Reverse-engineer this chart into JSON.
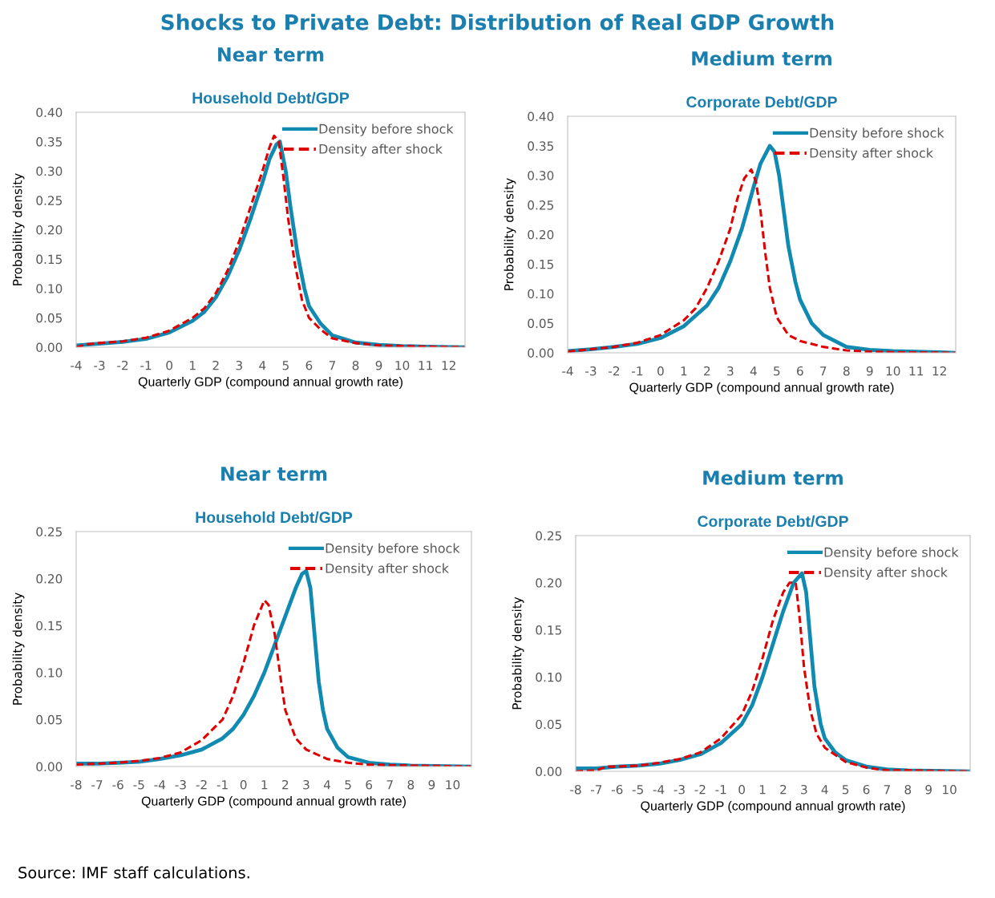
{
  "chart_data": [
    {
      "type": "other",
      "title": "Shocks to Private Debt: Distribution of Real GDP Growth",
      "annotations": [
        "Source: IMF staff calculations."
      ]
    },
    {
      "type": "line",
      "title": "Near term",
      "subtitle": "Household Debt/GDP",
      "xlabel": "Quarterly GDP (compound annual growth rate)",
      "ylabel": "Probability density",
      "xlim": [
        -4,
        12.7
      ],
      "xticks": [
        -4,
        -3,
        -2,
        -1,
        0,
        1,
        2,
        3,
        4,
        5,
        6,
        7,
        8,
        9,
        10,
        11,
        12
      ],
      "ylim": [
        0,
        0.4
      ],
      "yticks": [
        {
          "value": 0,
          "label": "0.00"
        },
        {
          "value": 0.05,
          "label": "0.05"
        },
        {
          "value": 0.1,
          "label": "0.10"
        },
        {
          "value": 0.15,
          "label": "0.15"
        },
        {
          "value": 0.2,
          "label": "0.20"
        },
        {
          "value": 0.25,
          "label": "0.25"
        },
        {
          "value": 0.3,
          "label": "0.30"
        },
        {
          "value": 0.35,
          "label": "0.35"
        },
        {
          "value": 0.4,
          "label": "0.40"
        }
      ],
      "legend": "top right",
      "grid": false,
      "series": [
        {
          "name": "Density before shock",
          "color": "#118ab2",
          "line_style": "solid",
          "x": [
            -4,
            -3,
            -2,
            -1,
            0,
            1,
            1.5,
            2,
            2.5,
            3,
            3.5,
            4,
            4.3,
            4.6,
            4.75,
            5,
            5.2,
            5.5,
            5.8,
            6,
            6.5,
            7,
            8,
            9,
            10,
            11,
            12.7
          ],
          "values": [
            0.003,
            0.006,
            0.009,
            0.014,
            0.025,
            0.045,
            0.06,
            0.085,
            0.12,
            0.165,
            0.22,
            0.28,
            0.32,
            0.345,
            0.35,
            0.3,
            0.24,
            0.16,
            0.1,
            0.07,
            0.04,
            0.02,
            0.008,
            0.004,
            0.002,
            0.001,
            0
          ]
        },
        {
          "name": "Density after shock",
          "color": "#e00000",
          "line_style": "dashed",
          "x": [
            -4,
            -3.5,
            -3,
            -2,
            -1,
            0,
            1,
            1.5,
            2,
            2.5,
            3,
            3.5,
            4,
            4.3,
            4.5,
            4.7,
            4.9,
            5.1,
            5.4,
            5.7,
            6,
            6.5,
            7,
            8,
            9,
            10,
            11,
            12.7
          ],
          "values": [
            0,
            0.005,
            0.007,
            0.01,
            0.016,
            0.028,
            0.05,
            0.066,
            0.092,
            0.13,
            0.18,
            0.24,
            0.3,
            0.34,
            0.36,
            0.35,
            0.29,
            0.22,
            0.14,
            0.08,
            0.05,
            0.03,
            0.015,
            0.007,
            0.003,
            0.002,
            0.001,
            0
          ]
        }
      ]
    },
    {
      "type": "line",
      "title": "Medium term",
      "subtitle": "Corporate Debt/GDP",
      "xlabel": "Quarterly GDP (compound annual growth rate)",
      "ylabel": "Probability density",
      "xlim": [
        -4,
        12.7
      ],
      "xticks": [
        -4,
        -3,
        -2,
        -1,
        0,
        1,
        2,
        3,
        4,
        5,
        6,
        7,
        8,
        9,
        10,
        11,
        12
      ],
      "ylim": [
        0,
        0.4
      ],
      "yticks": [
        {
          "value": 0,
          "label": "0.00"
        },
        {
          "value": 0.05,
          "label": "0.05"
        },
        {
          "value": 0.1,
          "label": "0.10"
        },
        {
          "value": 0.15,
          "label": "0.15"
        },
        {
          "value": 0.2,
          "label": "0.20"
        },
        {
          "value": 0.25,
          "label": "0.25"
        },
        {
          "value": 0.3,
          "label": "0.30"
        },
        {
          "value": 0.35,
          "label": "0.35"
        },
        {
          "value": 0.4,
          "label": "0.40"
        }
      ],
      "legend": "top right",
      "grid": false,
      "series": [
        {
          "name": "Density before shock",
          "color": "#118ab2",
          "line_style": "solid",
          "x": [
            -4,
            -3,
            -2,
            -1,
            0,
            1,
            2,
            2.5,
            3,
            3.5,
            4,
            4.3,
            4.7,
            4.9,
            5.1,
            5.3,
            5.5,
            5.8,
            6,
            6.5,
            7,
            8,
            9,
            10,
            11,
            12,
            12.7
          ],
          "values": [
            0.003,
            0.006,
            0.01,
            0.015,
            0.025,
            0.045,
            0.08,
            0.11,
            0.155,
            0.21,
            0.28,
            0.32,
            0.35,
            0.34,
            0.3,
            0.24,
            0.18,
            0.12,
            0.09,
            0.05,
            0.03,
            0.01,
            0.005,
            0.003,
            0.002,
            0.001,
            0
          ]
        },
        {
          "name": "Density after shock",
          "color": "#e00000",
          "line_style": "dashed",
          "x": [
            -4,
            -3,
            -2,
            -1,
            0,
            1,
            1.5,
            2,
            2.5,
            3,
            3.3,
            3.6,
            3.9,
            4.1,
            4.3,
            4.5,
            4.7,
            5,
            5.5,
            6,
            7,
            8,
            9,
            10,
            12.7
          ],
          "values": [
            0.002,
            0.006,
            0.01,
            0.017,
            0.03,
            0.055,
            0.075,
            0.11,
            0.155,
            0.21,
            0.26,
            0.295,
            0.31,
            0.29,
            0.24,
            0.17,
            0.11,
            0.06,
            0.03,
            0.02,
            0.01,
            0.004,
            0.002,
            0.001,
            0
          ]
        }
      ]
    },
    {
      "type": "line",
      "title": "Near term",
      "subtitle": "Household Debt/GDP",
      "xlabel": "Quarterly GDP (compound annual growth rate)",
      "ylabel": "Probability density",
      "xlim": [
        -8,
        10.9
      ],
      "xticks": [
        -8,
        -7,
        -6,
        -5,
        -4,
        -3,
        -2,
        -1,
        0,
        1,
        2,
        3,
        4,
        5,
        6,
        7,
        8,
        9,
        10
      ],
      "ylim": [
        0,
        0.25
      ],
      "yticks": [
        {
          "value": 0,
          "label": "0.00"
        },
        {
          "value": 0.05,
          "label": "0.05"
        },
        {
          "value": 0.1,
          "label": "0.10"
        },
        {
          "value": 0.15,
          "label": "0.15"
        },
        {
          "value": 0.2,
          "label": "0.20"
        },
        {
          "value": 0.25,
          "label": "0.25"
        }
      ],
      "legend": "top right",
      "grid": false,
      "series": [
        {
          "name": "Density before shock",
          "color": "#118ab2",
          "line_style": "solid",
          "x": [
            -8,
            -7,
            -6,
            -5,
            -4,
            -3,
            -2,
            -1,
            -0.5,
            0,
            0.5,
            1,
            1.5,
            2,
            2.5,
            2.8,
            3,
            3.2,
            3.4,
            3.6,
            3.8,
            4,
            4.5,
            5,
            6,
            7,
            8,
            10.9
          ],
          "values": [
            0.003,
            0.003,
            0.004,
            0.005,
            0.008,
            0.012,
            0.018,
            0.03,
            0.04,
            0.055,
            0.075,
            0.1,
            0.13,
            0.16,
            0.19,
            0.205,
            0.208,
            0.19,
            0.14,
            0.09,
            0.06,
            0.04,
            0.02,
            0.01,
            0.004,
            0.002,
            0.001,
            0
          ]
        },
        {
          "name": "Density after shock",
          "color": "#e00000",
          "line_style": "dashed",
          "x": [
            -8,
            -7,
            -6,
            -5,
            -4,
            -3,
            -2,
            -1,
            -0.5,
            0,
            0.5,
            1,
            1.2,
            1.5,
            1.8,
            2,
            2.5,
            3,
            4,
            5,
            6,
            8,
            10.9
          ],
          "values": [
            0.002,
            0.003,
            0.004,
            0.006,
            0.009,
            0.015,
            0.028,
            0.05,
            0.075,
            0.11,
            0.15,
            0.177,
            0.172,
            0.14,
            0.09,
            0.06,
            0.03,
            0.018,
            0.008,
            0.004,
            0.002,
            0.001,
            0
          ]
        }
      ]
    },
    {
      "type": "line",
      "title": "Medium term",
      "subtitle": "Corporate Debt/GDP",
      "xlabel": "Quarterly GDP (compound annual growth rate)",
      "ylabel": "Probability density",
      "xlim": [
        -8,
        11
      ],
      "xticks": [
        -8,
        -7,
        -6,
        -5,
        -4,
        -3,
        -2,
        -1,
        0,
        1,
        2,
        3,
        4,
        5,
        6,
        7,
        8,
        9,
        10
      ],
      "ylim": [
        0,
        0.25
      ],
      "yticks": [
        {
          "value": 0,
          "label": "0.00"
        },
        {
          "value": 0.05,
          "label": "0.05"
        },
        {
          "value": 0.1,
          "label": "0.10"
        },
        {
          "value": 0.15,
          "label": "0.15"
        },
        {
          "value": 0.2,
          "label": "0.20"
        },
        {
          "value": 0.25,
          "label": "0.25"
        }
      ],
      "legend": "top right",
      "grid": false,
      "series": [
        {
          "name": "Density before shock",
          "color": "#118ab2",
          "line_style": "solid",
          "x": [
            -8,
            -7,
            -6,
            -5,
            -4,
            -3,
            -2,
            -1,
            0,
            0.5,
            1,
            1.5,
            2,
            2.5,
            2.9,
            3.1,
            3.3,
            3.5,
            3.8,
            4,
            4.5,
            5,
            6,
            7,
            8,
            11
          ],
          "values": [
            0.003,
            0.003,
            0.005,
            0.006,
            0.008,
            0.012,
            0.018,
            0.03,
            0.05,
            0.07,
            0.1,
            0.135,
            0.17,
            0.2,
            0.21,
            0.19,
            0.14,
            0.09,
            0.05,
            0.035,
            0.02,
            0.012,
            0.005,
            0.002,
            0.001,
            0
          ]
        },
        {
          "name": "Density after shock",
          "color": "#e00000",
          "line_style": "dashed",
          "x": [
            -8,
            -7,
            -6.5,
            -6,
            -5,
            -4,
            -3,
            -2,
            -1,
            0,
            0.5,
            1,
            1.5,
            2,
            2.3,
            2.6,
            2.8,
            3,
            3.3,
            3.6,
            4,
            5,
            6,
            7,
            8,
            11
          ],
          "values": [
            0,
            0.001,
            0.005,
            0.005,
            0.006,
            0.009,
            0.013,
            0.02,
            0.035,
            0.06,
            0.085,
            0.12,
            0.16,
            0.19,
            0.2,
            0.2,
            0.16,
            0.11,
            0.065,
            0.04,
            0.025,
            0.01,
            0.004,
            0.001,
            0.001,
            0
          ]
        }
      ]
    }
  ]
}
